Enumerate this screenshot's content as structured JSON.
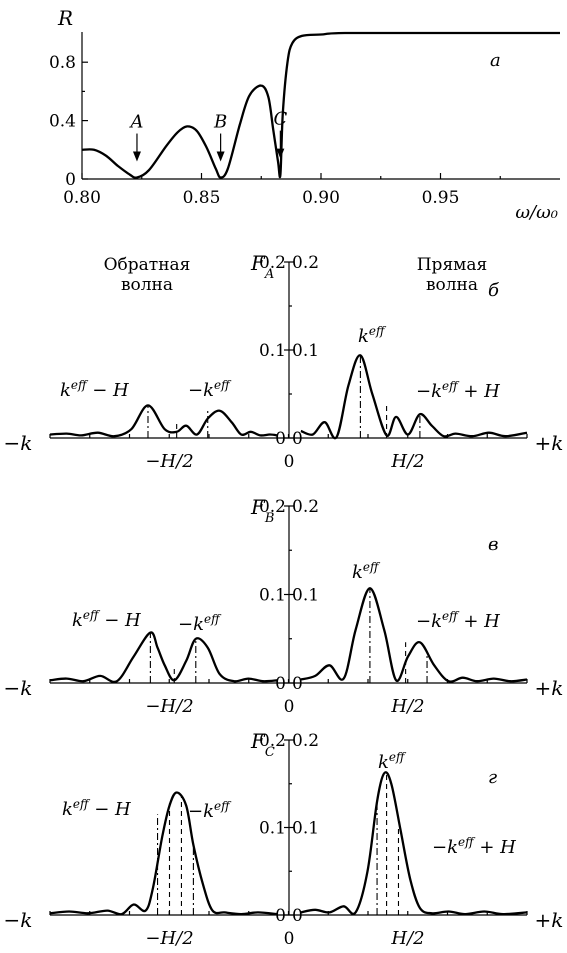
{
  "chart_data": [
    {
      "type": "line",
      "panel_letter": "а",
      "ylabel": "R",
      "xlabel": "ω/ω₀",
      "xlim": [
        0.8,
        1.0
      ],
      "ylim": [
        0,
        1.0
      ],
      "xticks": [
        "0.80",
        "0.85",
        "0.90",
        "0.95"
      ],
      "yticks": [
        "0",
        "0.4",
        "0.8"
      ],
      "x": [
        0.8,
        0.805,
        0.81,
        0.815,
        0.82,
        0.823,
        0.828,
        0.835,
        0.84,
        0.844,
        0.848,
        0.852,
        0.856,
        0.858,
        0.861,
        0.866,
        0.87,
        0.875,
        0.878,
        0.88,
        0.882,
        0.883,
        0.884,
        0.886,
        0.888,
        0.892,
        0.9,
        0.91,
        0.95,
        1.0
      ],
      "y": [
        0.2,
        0.2,
        0.16,
        0.09,
        0.03,
        0.01,
        0.06,
        0.22,
        0.32,
        0.36,
        0.33,
        0.22,
        0.07,
        0.01,
        0.07,
        0.37,
        0.57,
        0.64,
        0.56,
        0.34,
        0.12,
        0.03,
        0.45,
        0.8,
        0.93,
        0.98,
        0.99,
        1.0,
        1.0,
        1.0
      ],
      "annotations": [
        {
          "label": "A",
          "x": 0.823
        },
        {
          "label": "B",
          "x": 0.858
        },
        {
          "label": "C",
          "x": 0.883
        }
      ]
    },
    {
      "type": "line",
      "panel_letter": "б",
      "ylabel": "F_A",
      "left_caption": [
        "Обратная",
        "волна"
      ],
      "right_caption": [
        "Прямая",
        "волна"
      ],
      "yticks_left": [
        "0",
        "0.1",
        "0.2"
      ],
      "yticks_right": [
        "0",
        "0.1",
        "0.2"
      ],
      "ylim": [
        0,
        0.2
      ],
      "x_axis_labels": {
        "left_end": "−k",
        "right_end": "+k",
        "left_mid": "−H/2",
        "zero": "0",
        "right_mid": "H/2"
      },
      "left_branch": {
        "x": [
          -1.0,
          -0.93,
          -0.87,
          -0.8,
          -0.73,
          -0.66,
          -0.59,
          -0.52,
          -0.47,
          -0.43,
          -0.385,
          -0.34,
          -0.29,
          -0.24,
          -0.2,
          -0.16,
          -0.12,
          -0.08,
          -0.05
        ],
        "y": [
          0.004,
          0.005,
          0.003,
          0.006,
          0.002,
          0.01,
          0.037,
          0.01,
          0.007,
          0.014,
          0.004,
          0.022,
          0.031,
          0.018,
          0.004,
          0.007,
          0.003,
          0.004,
          0.003
        ]
      },
      "right_branch": {
        "x": [
          0.05,
          0.1,
          0.15,
          0.2,
          0.25,
          0.3,
          0.35,
          0.41,
          0.45,
          0.5,
          0.55,
          0.6,
          0.65,
          0.7,
          0.77,
          0.84,
          0.91,
          1.0
        ],
        "y": [
          0.008,
          0.004,
          0.018,
          0.001,
          0.06,
          0.094,
          0.05,
          0.003,
          0.024,
          0.004,
          0.027,
          0.014,
          0.002,
          0.005,
          0.002,
          0.006,
          0.002,
          0.006
        ]
      },
      "guides": [
        {
          "style": "dashdot",
          "x": -0.59,
          "y": 0.037
        },
        {
          "style": "dashdot",
          "x": -0.34,
          "y": 0.031
        },
        {
          "style": "dash",
          "x": -0.47,
          "y": 0.02
        },
        {
          "style": "dashdot",
          "x": 0.3,
          "y": 0.094
        },
        {
          "style": "dashdot",
          "x": 0.55,
          "y": 0.027
        },
        {
          "style": "dash",
          "x": 0.41,
          "y": 0.04
        }
      ],
      "labels": [
        {
          "base": "k",
          "sup": "eff",
          "rest": " − H"
        },
        {
          "base": "−k",
          "sup": "eff",
          "rest": ""
        },
        {
          "base": "k",
          "sup": "eff",
          "rest": ""
        },
        {
          "base": "−k",
          "sup": "eff",
          "rest": " + H"
        }
      ]
    },
    {
      "type": "line",
      "panel_letter": "в",
      "ylabel": "F_B",
      "yticks_left": [
        "0",
        "0.1",
        "0.2"
      ],
      "yticks_right": [
        "0",
        "0.1",
        "0.2"
      ],
      "ylim": [
        0,
        0.2
      ],
      "x_axis_labels": {
        "left_end": "−k",
        "right_end": "+k",
        "left_mid": "−H/2",
        "zero": "0",
        "right_mid": "H/2"
      },
      "left_branch": {
        "x": [
          -1.0,
          -0.93,
          -0.86,
          -0.79,
          -0.72,
          -0.65,
          -0.58,
          -0.55,
          -0.52,
          -0.48,
          -0.43,
          -0.39,
          -0.34,
          -0.29,
          -0.23,
          -0.17,
          -0.11,
          -0.05
        ],
        "y": [
          0.003,
          0.005,
          0.002,
          0.008,
          0.002,
          0.03,
          0.057,
          0.04,
          0.02,
          0.003,
          0.025,
          0.05,
          0.04,
          0.01,
          0.002,
          0.005,
          0.002,
          0.003
        ]
      },
      "right_branch": {
        "x": [
          0.05,
          0.11,
          0.17,
          0.23,
          0.28,
          0.34,
          0.4,
          0.45,
          0.5,
          0.55,
          0.61,
          0.67,
          0.73,
          0.79,
          0.86,
          0.93,
          1.0
        ],
        "y": [
          0.004,
          0.008,
          0.02,
          0.005,
          0.06,
          0.107,
          0.06,
          0.003,
          0.03,
          0.046,
          0.02,
          0.002,
          0.006,
          0.002,
          0.005,
          0.002,
          0.004
        ]
      },
      "guides": [
        {
          "style": "dashdot",
          "x": -0.58,
          "y": 0.057
        },
        {
          "style": "dashdot",
          "x": -0.39,
          "y": 0.05
        },
        {
          "style": "dash",
          "x": -0.48,
          "y": 0.02
        },
        {
          "style": "dashdot",
          "x": 0.34,
          "y": 0.107
        },
        {
          "style": "dashdot",
          "x": 0.58,
          "y": 0.035
        },
        {
          "style": "dash",
          "x": 0.49,
          "y": 0.046
        }
      ],
      "labels": [
        {
          "base": "k",
          "sup": "eff",
          "rest": " − H"
        },
        {
          "base": "−k",
          "sup": "eff",
          "rest": ""
        },
        {
          "base": "k",
          "sup": "eff",
          "rest": ""
        },
        {
          "base": "−k",
          "sup": "eff",
          "rest": " + H"
        }
      ]
    },
    {
      "type": "line",
      "panel_letter": "г",
      "ylabel": "F_C",
      "yticks_left": [
        "0",
        "0.1",
        "0.2"
      ],
      "yticks_right": [
        "0",
        "0.1",
        "0.2"
      ],
      "ylim": [
        0,
        0.2
      ],
      "x_axis_labels": {
        "left_end": "−k",
        "right_end": "+k",
        "left_mid": "−H/2",
        "zero": "0",
        "right_mid": "H/2"
      },
      "left_branch": {
        "x": [
          -1.0,
          -0.92,
          -0.84,
          -0.76,
          -0.7,
          -0.65,
          -0.6,
          -0.57,
          -0.53,
          -0.5,
          -0.47,
          -0.43,
          -0.4,
          -0.36,
          -0.32,
          -0.27,
          -0.2,
          -0.13,
          -0.05
        ],
        "y": [
          0.002,
          0.004,
          0.002,
          0.005,
          0.001,
          0.012,
          0.005,
          0.03,
          0.09,
          0.125,
          0.14,
          0.125,
          0.08,
          0.035,
          0.005,
          0.003,
          0.001,
          0.003,
          0.001
        ]
      },
      "right_branch": {
        "x": [
          0.05,
          0.11,
          0.17,
          0.23,
          0.28,
          0.33,
          0.37,
          0.4,
          0.43,
          0.47,
          0.51,
          0.55,
          0.6,
          0.67,
          0.74,
          0.82,
          0.9,
          1.0
        ],
        "y": [
          0.003,
          0.006,
          0.003,
          0.01,
          0.003,
          0.05,
          0.13,
          0.162,
          0.15,
          0.095,
          0.04,
          0.008,
          0.002,
          0.004,
          0.001,
          0.004,
          0.001,
          0.003
        ]
      },
      "guides": [
        {
          "style": "dashdot",
          "x": -0.55,
          "y": 0.115
        },
        {
          "style": "dash",
          "x": -0.5,
          "y": 0.128
        },
        {
          "style": "dash",
          "x": -0.45,
          "y": 0.135
        },
        {
          "style": "dashdot",
          "x": -0.4,
          "y": 0.08
        },
        {
          "style": "dashdot",
          "x": 0.37,
          "y": 0.13
        },
        {
          "style": "dash",
          "x": 0.41,
          "y": 0.16
        },
        {
          "style": "dash",
          "x": 0.46,
          "y": 0.1
        }
      ],
      "labels": [
        {
          "base": "k",
          "sup": "eff",
          "rest": " − H"
        },
        {
          "base": "−k",
          "sup": "eff",
          "rest": ""
        },
        {
          "base": "k",
          "sup": "eff",
          "rest": ""
        },
        {
          "base": "−k",
          "sup": "eff",
          "rest": " + H"
        }
      ]
    }
  ]
}
